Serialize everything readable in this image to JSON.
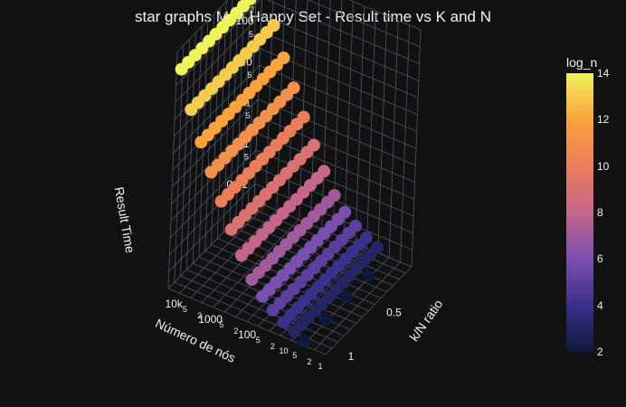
{
  "chart_data": {
    "type": "scatter",
    "title": "star graphs Max Happy Set - Result time vs K and N",
    "axes": {
      "x": {
        "label": "Número de nós",
        "scale": "log",
        "ticks": [
          "1",
          "2",
          "5",
          "10",
          "2",
          "5",
          "100",
          "2",
          "5",
          "1000",
          "2",
          "5",
          "10k"
        ]
      },
      "y": {
        "label": "k/N ratio",
        "ticks": [
          "0.5",
          "1"
        ]
      },
      "z": {
        "label": "Result Time",
        "scale": "log",
        "ticks": [
          "0.01",
          "2",
          "5",
          "0.1",
          "2",
          "5",
          "1",
          "2",
          "5",
          "10",
          "2",
          "5",
          "100",
          "2",
          "5",
          "1000",
          "2"
        ]
      }
    },
    "colorbar": {
      "title": "log_n",
      "range": [
        2,
        14
      ],
      "ticks": [
        "2",
        "4",
        "6",
        "8",
        "10",
        "12",
        "14"
      ],
      "colors": [
        "#0d1a3a",
        "#3a2f8a",
        "#7a4fb0",
        "#c5668a",
        "#ec7d5a",
        "#f9a33c",
        "#f0f35a"
      ]
    },
    "series": [
      {
        "log_n": 14,
        "n": 16384,
        "k_ratio": [
          0.02,
          0.1,
          0.18,
          0.26,
          0.34,
          0.42,
          0.5,
          0.58,
          0.66,
          0.74,
          0.82,
          0.9,
          0.98
        ],
        "time": [
          900,
          900,
          900,
          900,
          900,
          900,
          900,
          900,
          900,
          900,
          900,
          900,
          900
        ]
      },
      {
        "log_n": 13,
        "n": 8192,
        "k_ratio": [
          0.02,
          0.1,
          0.18,
          0.26,
          0.34,
          0.42,
          0.5,
          0.58,
          0.66,
          0.74,
          0.82,
          0.9,
          0.98
        ],
        "time": [
          120,
          120,
          120,
          120,
          120,
          120,
          120,
          120,
          120,
          120,
          120,
          120,
          120
        ]
      },
      {
        "log_n": 12,
        "n": 4096,
        "k_ratio": [
          0.02,
          0.1,
          0.18,
          0.26,
          0.34,
          0.42,
          0.5,
          0.58,
          0.66,
          0.74,
          0.82,
          0.9,
          0.98
        ],
        "time": [
          25,
          25,
          25,
          25,
          25,
          25,
          25,
          25,
          25,
          25,
          25,
          25,
          25
        ]
      },
      {
        "log_n": 11,
        "n": 2048,
        "k_ratio": [
          0.02,
          0.1,
          0.18,
          0.26,
          0.34,
          0.42,
          0.5,
          0.58,
          0.66,
          0.74,
          0.82,
          0.9,
          0.98
        ],
        "time": [
          6,
          6,
          6,
          6,
          6,
          6,
          6,
          6,
          6,
          6,
          6,
          6,
          6
        ]
      },
      {
        "log_n": 10,
        "n": 1024,
        "k_ratio": [
          0.02,
          0.1,
          0.18,
          0.26,
          0.34,
          0.42,
          0.5,
          0.58,
          0.66,
          0.74,
          0.82,
          0.9,
          0.98
        ],
        "time": [
          1.5,
          1.5,
          1.5,
          1.5,
          1.5,
          1.5,
          1.5,
          1.5,
          1.5,
          1.5,
          1.5,
          1.5,
          1.5
        ]
      },
      {
        "log_n": 9,
        "n": 512,
        "k_ratio": [
          0.02,
          0.1,
          0.18,
          0.26,
          0.34,
          0.42,
          0.5,
          0.58,
          0.66,
          0.74,
          0.82,
          0.9,
          0.98
        ],
        "time": [
          0.4,
          0.4,
          0.4,
          0.4,
          0.4,
          0.4,
          0.4,
          0.4,
          0.4,
          0.4,
          0.4,
          0.4,
          0.4
        ]
      },
      {
        "log_n": 8,
        "n": 256,
        "k_ratio": [
          0.02,
          0.1,
          0.18,
          0.26,
          0.34,
          0.42,
          0.5,
          0.58,
          0.66,
          0.74,
          0.82,
          0.9,
          0.98
        ],
        "time": [
          0.12,
          0.12,
          0.12,
          0.12,
          0.12,
          0.12,
          0.12,
          0.12,
          0.12,
          0.12,
          0.12,
          0.12,
          0.12
        ]
      },
      {
        "log_n": 7,
        "n": 128,
        "k_ratio": [
          0.02,
          0.1,
          0.18,
          0.26,
          0.34,
          0.42,
          0.5,
          0.58,
          0.66,
          0.74,
          0.82,
          0.9,
          0.98
        ],
        "time": [
          0.04,
          0.04,
          0.04,
          0.04,
          0.04,
          0.04,
          0.04,
          0.04,
          0.04,
          0.04,
          0.04,
          0.04,
          0.04
        ]
      },
      {
        "log_n": 6,
        "n": 64,
        "k_ratio": [
          0.02,
          0.1,
          0.18,
          0.26,
          0.34,
          0.42,
          0.5,
          0.58,
          0.66,
          0.74,
          0.82,
          0.9,
          0.98
        ],
        "time": [
          0.02,
          0.02,
          0.02,
          0.02,
          0.02,
          0.02,
          0.02,
          0.02,
          0.02,
          0.02,
          0.02,
          0.02,
          0.02
        ]
      },
      {
        "log_n": 5,
        "n": 32,
        "k_ratio": [
          0.02,
          0.1,
          0.18,
          0.26,
          0.34,
          0.42,
          0.5,
          0.58,
          0.66,
          0.74,
          0.82,
          0.9,
          0.98
        ],
        "time": [
          0.012,
          0.012,
          0.012,
          0.012,
          0.012,
          0.012,
          0.012,
          0.012,
          0.012,
          0.012,
          0.012,
          0.012,
          0.012
        ]
      },
      {
        "log_n": 4,
        "n": 16,
        "k_ratio": [
          0.02,
          0.1,
          0.18,
          0.26,
          0.34,
          0.42,
          0.5,
          0.58,
          0.66,
          0.74,
          0.82,
          0.9,
          0.98
        ],
        "time": [
          0.008,
          0.008,
          0.008,
          0.008,
          0.008,
          0.008,
          0.008,
          0.008,
          0.008,
          0.008,
          0.008,
          0.008,
          0.008
        ]
      },
      {
        "log_n": 3,
        "n": 8,
        "k_ratio": [
          0.02,
          0.1,
          0.18,
          0.26,
          0.34,
          0.42,
          0.5,
          0.58,
          0.66,
          0.74,
          0.82,
          0.9,
          0.98
        ],
        "time": [
          0.006,
          0.006,
          0.006,
          0.006,
          0.006,
          0.006,
          0.006,
          0.006,
          0.006,
          0.006,
          0.006,
          0.006,
          0.006
        ]
      },
      {
        "log_n": 2,
        "n": 4,
        "k_ratio": [
          0.25,
          0.5,
          0.75,
          1.0
        ],
        "time": [
          0.005,
          0.005,
          0.005,
          0.005
        ]
      }
    ]
  }
}
